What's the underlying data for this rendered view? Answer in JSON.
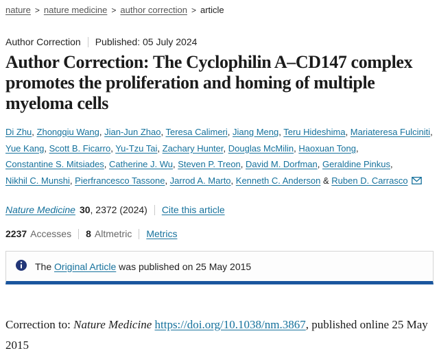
{
  "colors": {
    "link_teal": "#15719c",
    "accent_bar_blue": "#1a569e",
    "info_icon_navy": "#223677"
  },
  "breadcrumb": {
    "separator": ">",
    "items": [
      {
        "label": "nature"
      },
      {
        "label": "nature medicine"
      },
      {
        "label": "author correction"
      },
      {
        "label": "article"
      }
    ]
  },
  "meta": {
    "article_type": "Author Correction",
    "published_label": "Published:",
    "published_date": "05 July 2024"
  },
  "title": "Author Correction: The Cyclophilin A–CD147 complex promotes the proliferation and homing of multiple myeloma cells",
  "authors": {
    "names": [
      "Di Zhu",
      "Zhongqiu Wang",
      "Jian-Jun Zhao",
      "Teresa Calimeri",
      "Jiang Meng",
      "Teru Hideshima",
      "Mariateresa Fulciniti",
      "Yue Kang",
      "Scott B. Ficarro",
      "Yu-Tzu Tai",
      "Zachary Hunter",
      "Douglas McMilin",
      "Haoxuan Tong",
      "Constantine S. Mitsiades",
      "Catherine J. Wu",
      "Steven P. Treon",
      "David M. Dorfman",
      "Geraldine Pinkus",
      "Nikhil C. Munshi",
      "Pierfrancesco Tassone",
      "Jarrod A. Marto",
      "Kenneth C. Anderson",
      "Ruben D. Carrasco"
    ],
    "separator": ", ",
    "last_separator": " & "
  },
  "citation": {
    "journal": "Nature Medicine",
    "volume": "30",
    "page_year": ", 2372 (2024)",
    "cite_link": "Cite this article"
  },
  "metrics": {
    "accesses_value": "2237",
    "accesses_label": "Accesses",
    "altmetric_value": "8",
    "altmetric_label": "Altmetric",
    "metrics_link": "Metrics"
  },
  "notice": {
    "prefix": "The ",
    "link": "Original Article",
    "suffix": " was published on 25 May 2015"
  },
  "body": {
    "prefix": "Correction to: ",
    "journal": "Nature Medicine",
    "doi_link": "https://doi.org/10.1038/nm.3867",
    "suffix": ", published online 25 May 2015"
  }
}
